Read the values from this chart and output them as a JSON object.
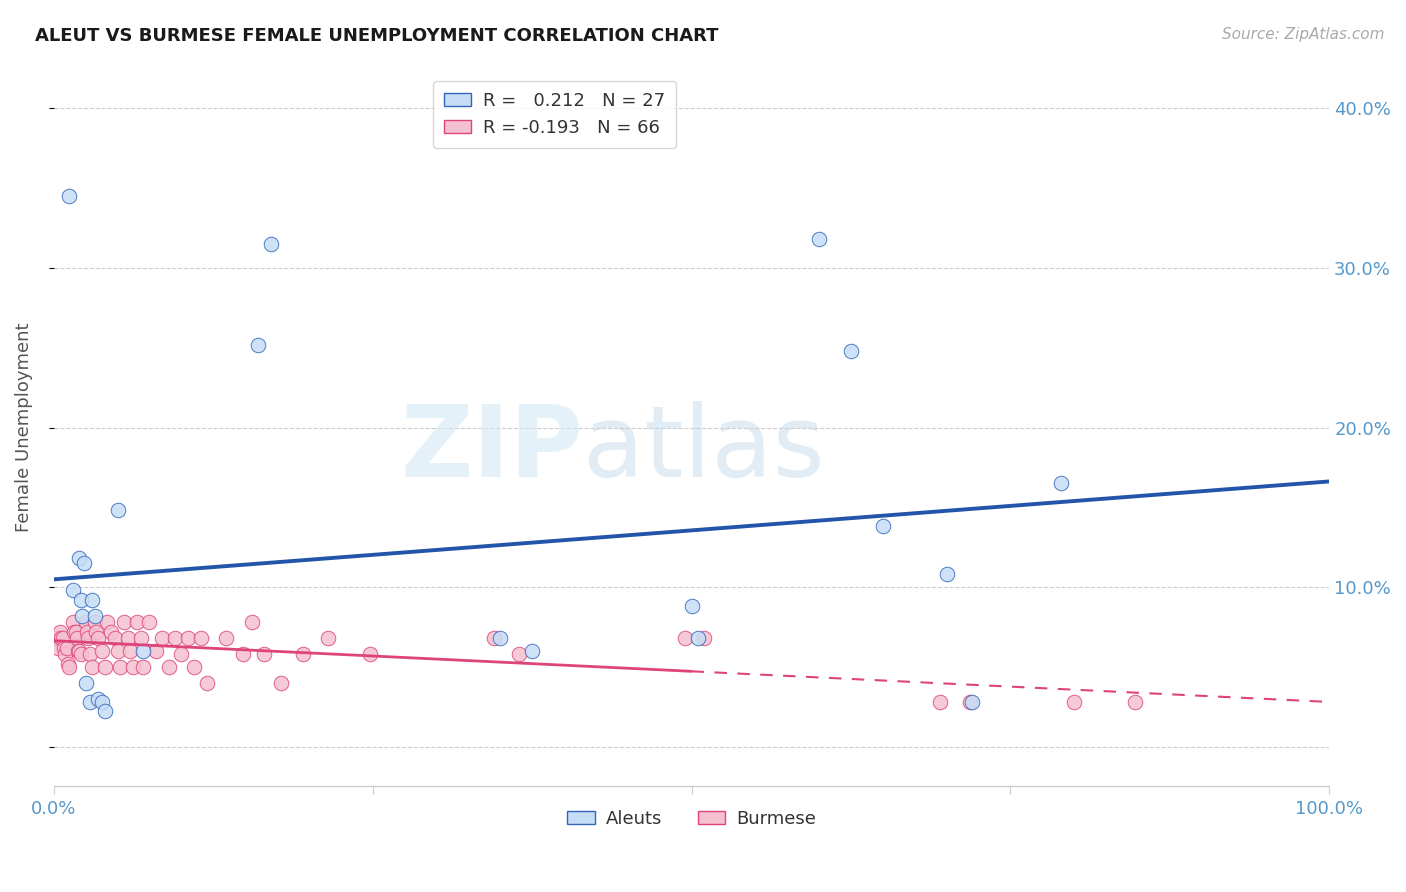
{
  "title": "ALEUT VS BURMESE FEMALE UNEMPLOYMENT CORRELATION CHART",
  "source": "Source: ZipAtlas.com",
  "ylabel": "Female Unemployment",
  "legend_aleut_R": " 0.212",
  "legend_aleut_N": "27",
  "legend_burmese_R": "-0.193",
  "legend_burmese_N": "66",
  "aleut_face": "#c5ddf5",
  "aleut_edge": "#3366bb",
  "aleut_line": "#2255aa",
  "burmese_face": "#f5c0d0",
  "burmese_edge": "#dd4477",
  "burmese_line": "#dd4477",
  "bg": "#ffffff",
  "grid_color": "#cccccc",
  "tick_color": "#5599cc",
  "title_color": "#1a1a1a",
  "ylabel_color": "#555555",
  "source_color": "#aaaaaa",
  "aleut_x": [
    0.012,
    0.015,
    0.02,
    0.021,
    0.022,
    0.024,
    0.025,
    0.028,
    0.03,
    0.032,
    0.035,
    0.038,
    0.04,
    0.05,
    0.07,
    0.16,
    0.17,
    0.35,
    0.375,
    0.5,
    0.505,
    0.6,
    0.625,
    0.65,
    0.7,
    0.72,
    0.79
  ],
  "aleut_y": [
    0.345,
    0.098,
    0.118,
    0.092,
    0.082,
    0.115,
    0.04,
    0.028,
    0.092,
    0.082,
    0.03,
    0.028,
    0.022,
    0.148,
    0.06,
    0.252,
    0.315,
    0.068,
    0.06,
    0.088,
    0.068,
    0.318,
    0.248,
    0.138,
    0.108,
    0.028,
    0.165
  ],
  "burmese_x": [
    0.001,
    0.002,
    0.003,
    0.005,
    0.006,
    0.007,
    0.008,
    0.009,
    0.01,
    0.011,
    0.012,
    0.015,
    0.016,
    0.017,
    0.018,
    0.019,
    0.02,
    0.021,
    0.025,
    0.026,
    0.027,
    0.028,
    0.03,
    0.032,
    0.033,
    0.035,
    0.038,
    0.04,
    0.042,
    0.045,
    0.048,
    0.05,
    0.052,
    0.055,
    0.058,
    0.06,
    0.062,
    0.065,
    0.068,
    0.07,
    0.075,
    0.08,
    0.085,
    0.09,
    0.095,
    0.1,
    0.105,
    0.11,
    0.115,
    0.12,
    0.135,
    0.148,
    0.155,
    0.165,
    0.178,
    0.195,
    0.215,
    0.248,
    0.345,
    0.365,
    0.495,
    0.51,
    0.695,
    0.718,
    0.8,
    0.848
  ],
  "burmese_y": [
    0.068,
    0.068,
    0.062,
    0.072,
    0.068,
    0.068,
    0.062,
    0.058,
    0.062,
    0.052,
    0.05,
    0.078,
    0.072,
    0.072,
    0.068,
    0.06,
    0.06,
    0.058,
    0.078,
    0.072,
    0.068,
    0.058,
    0.05,
    0.078,
    0.072,
    0.068,
    0.06,
    0.05,
    0.078,
    0.072,
    0.068,
    0.06,
    0.05,
    0.078,
    0.068,
    0.06,
    0.05,
    0.078,
    0.068,
    0.05,
    0.078,
    0.06,
    0.068,
    0.05,
    0.068,
    0.058,
    0.068,
    0.05,
    0.068,
    0.04,
    0.068,
    0.058,
    0.078,
    0.058,
    0.04,
    0.058,
    0.068,
    0.058,
    0.068,
    0.058,
    0.068,
    0.068,
    0.028,
    0.028,
    0.028,
    0.028
  ],
  "xlim": [
    0.0,
    1.0
  ],
  "ylim": [
    -0.025,
    0.425
  ],
  "yticks": [
    0.0,
    0.1,
    0.2,
    0.3,
    0.4
  ],
  "ytick_labels_right": [
    "",
    "10.0%",
    "20.0%",
    "30.0%",
    "40.0%"
  ],
  "xticks": [
    0.0,
    0.25,
    0.5,
    0.75,
    1.0
  ],
  "xtick_labels": [
    "0.0%",
    "",
    "",
    "",
    "100.0%"
  ],
  "marker_size": 110,
  "marker_alpha": 0.85
}
